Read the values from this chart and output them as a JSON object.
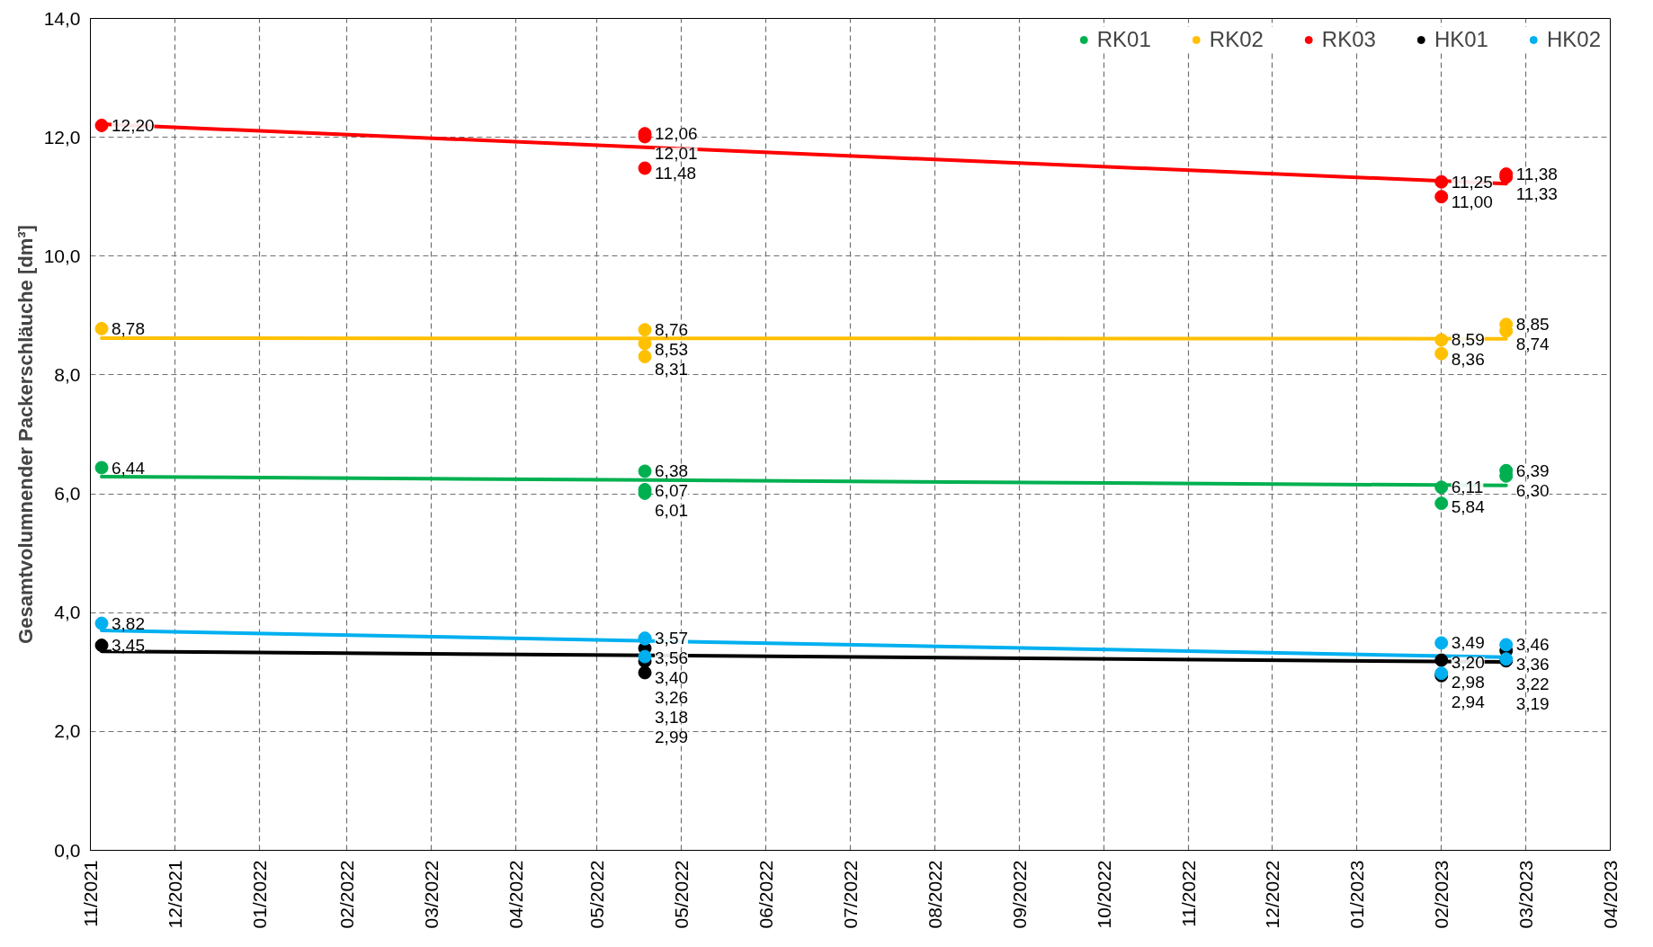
{
  "chart_data": {
    "type": "scatter",
    "ylabel": "Gesamtvolumnender Packerschläuche [dm³]",
    "xlim": [
      "2021-11-02",
      "2023-04-26"
    ],
    "xticks": [
      {
        "value": "2021-11-02",
        "label": "11/2021"
      },
      {
        "value": "2021-12-02",
        "label": "12/2021"
      },
      {
        "value": "2022-01-01",
        "label": "01/2022"
      },
      {
        "value": "2022-02-01",
        "label": "02/2022"
      },
      {
        "value": "2022-03-03",
        "label": "03/2022"
      },
      {
        "value": "2022-04-02",
        "label": "04/2022"
      },
      {
        "value": "2022-05-01",
        "label": "05/2022"
      },
      {
        "value": "2022-05-31",
        "label": "05/2022"
      },
      {
        "value": "2022-06-30",
        "label": "06/2022"
      },
      {
        "value": "2022-07-30",
        "label": "07/2022"
      },
      {
        "value": "2022-08-29",
        "label": "08/2022"
      },
      {
        "value": "2022-09-28",
        "label": "09/2022"
      },
      {
        "value": "2022-10-28",
        "label": "10/2022"
      },
      {
        "value": "2022-11-27",
        "label": "11/2022"
      },
      {
        "value": "2022-12-27",
        "label": "12/2022"
      },
      {
        "value": "2023-01-26",
        "label": "01/2023"
      },
      {
        "value": "2023-02-25",
        "label": "02/2023"
      },
      {
        "value": "2023-03-27",
        "label": "03/2023"
      },
      {
        "value": "2023-04-26",
        "label": "04/2023"
      }
    ],
    "ylim": [
      0,
      14
    ],
    "yticks": [
      {
        "value": 0,
        "label": "0,0"
      },
      {
        "value": 2,
        "label": "2,0"
      },
      {
        "value": 4,
        "label": "4,0"
      },
      {
        "value": 6,
        "label": "6,0"
      },
      {
        "value": 8,
        "label": "8,0"
      },
      {
        "value": 10,
        "label": "10,0"
      },
      {
        "value": 12,
        "label": "12,0"
      },
      {
        "value": 14,
        "label": "14,0"
      }
    ],
    "grid": true,
    "legend": "top right",
    "marker": "circle",
    "series": [
      {
        "name": "RK01",
        "color": "#00b050",
        "x": [
          "2021-11-06",
          "2022-05-18",
          "2022-05-18",
          "2022-05-18",
          "2023-02-25",
          "2023-02-25",
          "2023-03-20",
          "2023-03-20"
        ],
        "values": [
          6.44,
          6.38,
          6.07,
          6.01,
          6.11,
          5.84,
          6.39,
          6.3
        ],
        "value_labels": [
          "6,44",
          "6,38",
          "6,07",
          "6,01",
          "6,11",
          "5,84",
          "6,39",
          "6,30"
        ]
      },
      {
        "name": "RK02",
        "color": "#ffc000",
        "x": [
          "2021-11-06",
          "2022-05-18",
          "2022-05-18",
          "2022-05-18",
          "2023-02-25",
          "2023-02-25",
          "2023-03-20",
          "2023-03-20"
        ],
        "values": [
          8.78,
          8.76,
          8.53,
          8.31,
          8.59,
          8.36,
          8.85,
          8.74
        ],
        "value_labels": [
          "8,78",
          "8,76",
          "8,53",
          "8,31",
          "8,59",
          "8,36",
          "8,85",
          "8,74"
        ]
      },
      {
        "name": "RK03",
        "color": "#ff0000",
        "x": [
          "2021-11-06",
          "2022-05-18",
          "2022-05-18",
          "2022-05-18",
          "2023-02-25",
          "2023-02-25",
          "2023-03-20",
          "2023-03-20"
        ],
        "values": [
          12.2,
          12.01,
          12.06,
          11.48,
          11.25,
          11.0,
          11.38,
          11.33
        ],
        "value_labels": [
          "12,20",
          "12,01",
          "12,06",
          "11,48",
          "11,25",
          "11,00",
          "11,38",
          "11,33"
        ]
      },
      {
        "name": "HK01",
        "color": "#000000",
        "x": [
          "2021-11-06",
          "2022-05-18",
          "2022-05-18",
          "2022-05-18",
          "2023-02-25",
          "2023-02-25",
          "2023-03-20",
          "2023-03-20"
        ],
        "values": [
          3.45,
          3.4,
          3.18,
          2.99,
          3.2,
          2.94,
          3.36,
          3.19
        ],
        "value_labels": [
          "3,45",
          "3,40",
          "3,18",
          "2,99",
          "3,20",
          "2,94",
          "3,36",
          "3,19"
        ]
      },
      {
        "name": "HK02",
        "color": "#00b0f0",
        "x": [
          "2021-11-06",
          "2022-05-18",
          "2022-05-18",
          "2022-05-18",
          "2023-02-25",
          "2023-02-25",
          "2023-03-20",
          "2023-03-20"
        ],
        "values": [
          3.82,
          3.56,
          3.57,
          3.26,
          3.49,
          2.98,
          3.46,
          3.22
        ],
        "value_labels": [
          "3,82",
          "3,56",
          "3,57",
          "3,26",
          "3,49",
          "2,98",
          "3,46",
          "3,22"
        ]
      },
      {
        "type": "line",
        "marker": "none",
        "color": "#00b050",
        "x": [
          "2021-11-06",
          "2023-03-20"
        ],
        "values": [
          6.29,
          6.14
        ]
      },
      {
        "type": "line",
        "marker": "none",
        "color": "#ffc000",
        "x": [
          "2021-11-06",
          "2023-03-20"
        ],
        "values": [
          8.62,
          8.61
        ]
      },
      {
        "type": "line",
        "marker": "none",
        "color": "#ff0000",
        "x": [
          "2021-11-06",
          "2023-03-20"
        ],
        "values": [
          12.22,
          11.22
        ]
      },
      {
        "type": "line",
        "marker": "none",
        "color": "#000000",
        "x": [
          "2021-11-06",
          "2023-03-20"
        ],
        "values": [
          3.35,
          3.17
        ]
      },
      {
        "type": "line",
        "marker": "none",
        "color": "#00b0f0",
        "x": [
          "2021-11-06",
          "2023-03-20"
        ],
        "values": [
          3.7,
          3.25
        ]
      }
    ]
  }
}
